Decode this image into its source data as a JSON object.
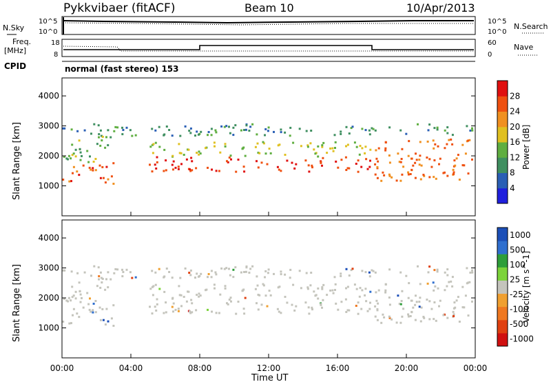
{
  "header": {
    "station": "Pykkvibaer (fitACF)",
    "beam": "Beam 10",
    "date": "10/Apr/2013"
  },
  "noise_panel": {
    "left_label": "N.Sky",
    "right_label": "N.Search",
    "ticks_left": [
      "10^5",
      "10^0"
    ],
    "ticks_right": [
      "10^5",
      "10^0"
    ]
  },
  "freq_panel": {
    "left_label_line1": "Freq.",
    "left_label_line2": "[MHz]",
    "right_label": "Nave",
    "ticks_left": [
      "18",
      "8"
    ],
    "ticks_right": [
      "60",
      "0"
    ]
  },
  "cpid": {
    "label": "CPID",
    "text": "normal (fast stereo) 153"
  },
  "colors": {
    "power": [
      "#1f1fdd",
      "#2a5fb5",
      "#3f8f60",
      "#5fae40",
      "#e0c020",
      "#f09020",
      "#ef5010",
      "#e01010"
    ],
    "velocity": [
      "#1c4fb8",
      "#2f6fcf",
      "#2e9e3a",
      "#7cd33a",
      "#c4c4bc",
      "#f0a030",
      "#ef7820",
      "#e04010",
      "#d01010"
    ],
    "ground": "#c4c4bc"
  },
  "chart_data": [
    {
      "type": "heatmap",
      "name": "power",
      "ylabel": "Slant Range [km]",
      "yticks": [
        "1000",
        "2000",
        "3000",
        "4000"
      ],
      "ylim": [
        0,
        4600
      ],
      "xlim": [
        0,
        24
      ],
      "colorbar_label": "Power [dB]",
      "colorbar_ticks": [
        "4",
        "8",
        "12",
        "16",
        "20",
        "24",
        "28"
      ],
      "colorbar_range": [
        0,
        32
      ],
      "bands": [
        {
          "t": [
            0,
            24
          ],
          "r": [
            2700,
            3100
          ],
          "value": 10
        },
        {
          "t": [
            0,
            3
          ],
          "r": [
            1800,
            2700
          ],
          "value": 14
        },
        {
          "t": [
            0,
            3
          ],
          "r": [
            1100,
            1800
          ],
          "value": 26
        },
        {
          "t": [
            5,
            18
          ],
          "r": [
            2000,
            2500
          ],
          "value": 16
        },
        {
          "t": [
            5,
            18
          ],
          "r": [
            1500,
            2000
          ],
          "value": 28
        },
        {
          "t": [
            18,
            24
          ],
          "r": [
            1200,
            2600
          ],
          "value": 24
        }
      ]
    },
    {
      "type": "heatmap",
      "name": "velocity",
      "ylabel": "Slant Range [km]",
      "yticks": [
        "1000",
        "2000",
        "3000",
        "4000"
      ],
      "ylim": [
        0,
        4600
      ],
      "xlabel": "Time UT",
      "xticks": [
        "00:00",
        "04:00",
        "08:00",
        "12:00",
        "16:00",
        "20:00",
        "00:00"
      ],
      "xlim": [
        0,
        24
      ],
      "colorbar_label": "Velocity [m s^-1]",
      "colorbar_ticks": [
        "1000",
        "500",
        "100",
        "25",
        "-25",
        "-100",
        "-500",
        "-1000"
      ]
    }
  ]
}
